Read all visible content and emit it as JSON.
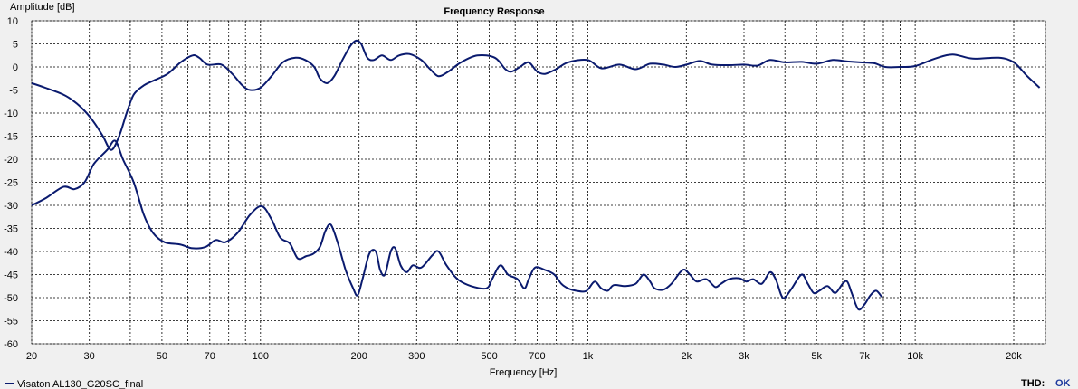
{
  "chart_data": {
    "type": "line",
    "title": "Frequency Response",
    "ylabel": "Amplitude [dB]",
    "xlabel": "Frequency [Hz]",
    "x_scale": "log",
    "xlim": [
      20,
      25000
    ],
    "ylim": [
      -60,
      10
    ],
    "y_ticks": [
      10,
      5,
      0,
      -5,
      -10,
      -15,
      -20,
      -25,
      -30,
      -35,
      -40,
      -45,
      -50,
      -55,
      -60
    ],
    "x_tick_labels": [
      {
        "value": 20,
        "label": "20"
      },
      {
        "value": 30,
        "label": "30"
      },
      {
        "value": 50,
        "label": "50"
      },
      {
        "value": 70,
        "label": "70"
      },
      {
        "value": 100,
        "label": "100"
      },
      {
        "value": 200,
        "label": "200"
      },
      {
        "value": 300,
        "label": "300"
      },
      {
        "value": 500,
        "label": "500"
      },
      {
        "value": 700,
        "label": "700"
      },
      {
        "value": 1000,
        "label": "1k"
      },
      {
        "value": 2000,
        "label": "2k"
      },
      {
        "value": 3000,
        "label": "3k"
      },
      {
        "value": 5000,
        "label": "5k"
      },
      {
        "value": 7000,
        "label": "7k"
      },
      {
        "value": 10000,
        "label": "10k"
      },
      {
        "value": 20000,
        "label": "20k"
      }
    ],
    "grid": true,
    "legend_position": "bottom-left",
    "series": [
      {
        "name": "Visaton AL130_G20SC_final",
        "color": "#0a1a6e",
        "points": [
          [
            20,
            -3.5
          ],
          [
            22,
            -4.5
          ],
          [
            25,
            -6
          ],
          [
            27,
            -7.5
          ],
          [
            29,
            -9.5
          ],
          [
            31,
            -12
          ],
          [
            33,
            -15
          ],
          [
            35,
            -18
          ],
          [
            37,
            -15
          ],
          [
            39,
            -10
          ],
          [
            41,
            -6
          ],
          [
            44,
            -4
          ],
          [
            47,
            -3
          ],
          [
            52,
            -1.5
          ],
          [
            57,
            1
          ],
          [
            62,
            2.5
          ],
          [
            65,
            2
          ],
          [
            69,
            0.5
          ],
          [
            76,
            0.5
          ],
          [
            82,
            -1.5
          ],
          [
            88,
            -4
          ],
          [
            93,
            -5
          ],
          [
            100,
            -4.5
          ],
          [
            108,
            -2
          ],
          [
            117,
            1
          ],
          [
            128,
            2
          ],
          [
            137,
            1.5
          ],
          [
            146,
            0
          ],
          [
            152,
            -2.5
          ],
          [
            160,
            -3.5
          ],
          [
            168,
            -2
          ],
          [
            178,
            1.5
          ],
          [
            188,
            4.5
          ],
          [
            196,
            5.7
          ],
          [
            203,
            5
          ],
          [
            212,
            2
          ],
          [
            222,
            1.5
          ],
          [
            235,
            2.5
          ],
          [
            250,
            1.5
          ],
          [
            265,
            2.5
          ],
          [
            285,
            2.8
          ],
          [
            310,
            1.5
          ],
          [
            330,
            -0.5
          ],
          [
            350,
            -2
          ],
          [
            375,
            -1
          ],
          [
            410,
            1
          ],
          [
            460,
            2.5
          ],
          [
            520,
            2
          ],
          [
            560,
            -0.5
          ],
          [
            585,
            -1
          ],
          [
            620,
            0
          ],
          [
            660,
            1
          ],
          [
            700,
            -1
          ],
          [
            740,
            -1.5
          ],
          [
            800,
            -0.5
          ],
          [
            870,
            1
          ],
          [
            1000,
            1.5
          ],
          [
            1100,
            -0.3
          ],
          [
            1250,
            0.5
          ],
          [
            1400,
            -0.5
          ],
          [
            1550,
            0.7
          ],
          [
            1700,
            0.5
          ],
          [
            1850,
            0
          ],
          [
            2000,
            0.5
          ],
          [
            2200,
            1.3
          ],
          [
            2400,
            0.5
          ],
          [
            2700,
            0.4
          ],
          [
            3000,
            0.5
          ],
          [
            3300,
            0.3
          ],
          [
            3600,
            1.5
          ],
          [
            4000,
            1
          ],
          [
            4500,
            1.1
          ],
          [
            5000,
            0.7
          ],
          [
            5600,
            1.5
          ],
          [
            6200,
            1.2
          ],
          [
            6800,
            1
          ],
          [
            7500,
            0.8
          ],
          [
            8100,
            0
          ],
          [
            9000,
            0
          ],
          [
            10000,
            0.2
          ],
          [
            11500,
            1.8
          ],
          [
            13000,
            2.7
          ],
          [
            15000,
            1.8
          ],
          [
            18000,
            2
          ],
          [
            20000,
            1
          ],
          [
            22000,
            -2
          ],
          [
            24000,
            -4.5
          ]
        ]
      },
      {
        "name": "",
        "color": "#0a1a6e",
        "points": [
          [
            20,
            -30
          ],
          [
            22,
            -28.5
          ],
          [
            25,
            -26
          ],
          [
            27,
            -26.5
          ],
          [
            29,
            -25
          ],
          [
            31,
            -21
          ],
          [
            34,
            -18
          ],
          [
            36,
            -16
          ],
          [
            38,
            -20
          ],
          [
            41,
            -25
          ],
          [
            44,
            -32
          ],
          [
            47,
            -36
          ],
          [
            51,
            -38
          ],
          [
            57,
            -38.5
          ],
          [
            62,
            -39.3
          ],
          [
            68,
            -39
          ],
          [
            73,
            -37.5
          ],
          [
            78,
            -38
          ],
          [
            85,
            -36
          ],
          [
            93,
            -32
          ],
          [
            101,
            -30.2
          ],
          [
            108,
            -33
          ],
          [
            115,
            -37
          ],
          [
            123,
            -38.3
          ],
          [
            130,
            -41.5
          ],
          [
            138,
            -41
          ],
          [
            145,
            -40.5
          ],
          [
            152,
            -39
          ],
          [
            158,
            -35.5
          ],
          [
            164,
            -34.2
          ],
          [
            172,
            -38
          ],
          [
            182,
            -44
          ],
          [
            192,
            -48
          ],
          [
            198,
            -49.5
          ],
          [
            205,
            -46
          ],
          [
            215,
            -40.5
          ],
          [
            225,
            -40
          ],
          [
            232,
            -44
          ],
          [
            240,
            -45
          ],
          [
            250,
            -40
          ],
          [
            258,
            -39.3
          ],
          [
            268,
            -43
          ],
          [
            280,
            -44.5
          ],
          [
            292,
            -43
          ],
          [
            310,
            -43.5
          ],
          [
            335,
            -40.8
          ],
          [
            350,
            -40
          ],
          [
            370,
            -43
          ],
          [
            400,
            -46
          ],
          [
            440,
            -47.5
          ],
          [
            490,
            -48
          ],
          [
            510,
            -46
          ],
          [
            540,
            -43
          ],
          [
            570,
            -45
          ],
          [
            610,
            -46
          ],
          [
            640,
            -48
          ],
          [
            660,
            -46
          ],
          [
            690,
            -43.5
          ],
          [
            740,
            -44
          ],
          [
            790,
            -45
          ],
          [
            830,
            -47
          ],
          [
            870,
            -48
          ],
          [
            920,
            -48.5
          ],
          [
            970,
            -48.7
          ],
          [
            1000,
            -48.3
          ],
          [
            1050,
            -46.5
          ],
          [
            1100,
            -48
          ],
          [
            1150,
            -48.5
          ],
          [
            1200,
            -47.3
          ],
          [
            1300,
            -47.5
          ],
          [
            1400,
            -47
          ],
          [
            1480,
            -45
          ],
          [
            1550,
            -46.5
          ],
          [
            1600,
            -48
          ],
          [
            1700,
            -48.3
          ],
          [
            1800,
            -47
          ],
          [
            1950,
            -44
          ],
          [
            2050,
            -45
          ],
          [
            2150,
            -46.5
          ],
          [
            2300,
            -46
          ],
          [
            2450,
            -47.7
          ],
          [
            2550,
            -47
          ],
          [
            2700,
            -46
          ],
          [
            2900,
            -45.8
          ],
          [
            3050,
            -46.5
          ],
          [
            3200,
            -46
          ],
          [
            3400,
            -47
          ],
          [
            3600,
            -44.5
          ],
          [
            3750,
            -46
          ],
          [
            3900,
            -49.5
          ],
          [
            4000,
            -50
          ],
          [
            4200,
            -48
          ],
          [
            4500,
            -45
          ],
          [
            4700,
            -47
          ],
          [
            4900,
            -49
          ],
          [
            5100,
            -48.5
          ],
          [
            5400,
            -47.5
          ],
          [
            5700,
            -49
          ],
          [
            6000,
            -47
          ],
          [
            6200,
            -46.5
          ],
          [
            6400,
            -49
          ],
          [
            6700,
            -52.5
          ],
          [
            7000,
            -51.5
          ],
          [
            7300,
            -49.5
          ],
          [
            7600,
            -48.5
          ],
          [
            7900,
            -49.8
          ]
        ]
      }
    ]
  },
  "legend": {
    "label": "Visaton AL130_G20SC_final"
  },
  "status": {
    "thd_label": "THD:",
    "thd_value": "OK"
  },
  "colors": {
    "curve": "#0a1a6e",
    "thd_ok": "#1e3a9e",
    "grid": "#000000",
    "plot_bg": "#ffffff"
  }
}
